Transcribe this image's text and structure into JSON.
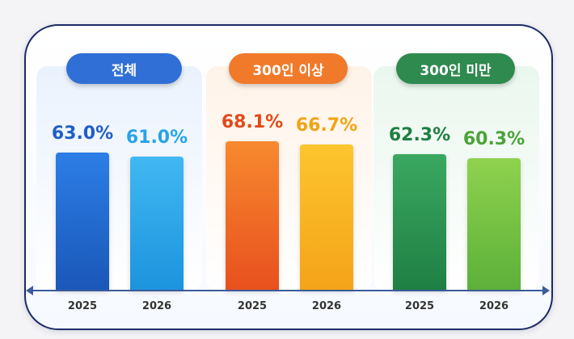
{
  "chart_data": {
    "type": "bar",
    "groups": [
      {
        "label": "전체",
        "pill_color": "#2f6fd6",
        "bars": [
          {
            "year": "2025",
            "value": 63.0,
            "label": "63.0%",
            "color_top": "#2c7ee6",
            "color_bottom": "#1a57b8",
            "label_color": "#1e5fc8"
          },
          {
            "year": "2026",
            "value": 61.0,
            "label": "61.0%",
            "color_top": "#41b8f2",
            "color_bottom": "#1c93dd",
            "label_color": "#29a3ea"
          }
        ]
      },
      {
        "label": "300인 이상",
        "pill_color": "#f07a2a",
        "bars": [
          {
            "year": "2025",
            "value": 68.1,
            "label": "68.1%",
            "color_top": "#f7892e",
            "color_bottom": "#e8501e",
            "label_color": "#e24a1a"
          },
          {
            "year": "2026",
            "value": 66.7,
            "label": "66.7%",
            "color_top": "#fcc52e",
            "color_bottom": "#f4a318",
            "label_color": "#f2a414"
          }
        ]
      },
      {
        "label": "300인 미만",
        "pill_color": "#2f8a4f",
        "bars": [
          {
            "year": "2025",
            "value": 62.3,
            "label": "62.3%",
            "color_top": "#3aa860",
            "color_bottom": "#1f7f44",
            "label_color": "#1f7e42"
          },
          {
            "year": "2026",
            "value": 60.3,
            "label": "60.3%",
            "color_top": "#8fd24e",
            "color_bottom": "#5cb039",
            "label_color": "#4aa33a"
          }
        ]
      }
    ],
    "ylim": [
      0,
      68.1
    ]
  }
}
